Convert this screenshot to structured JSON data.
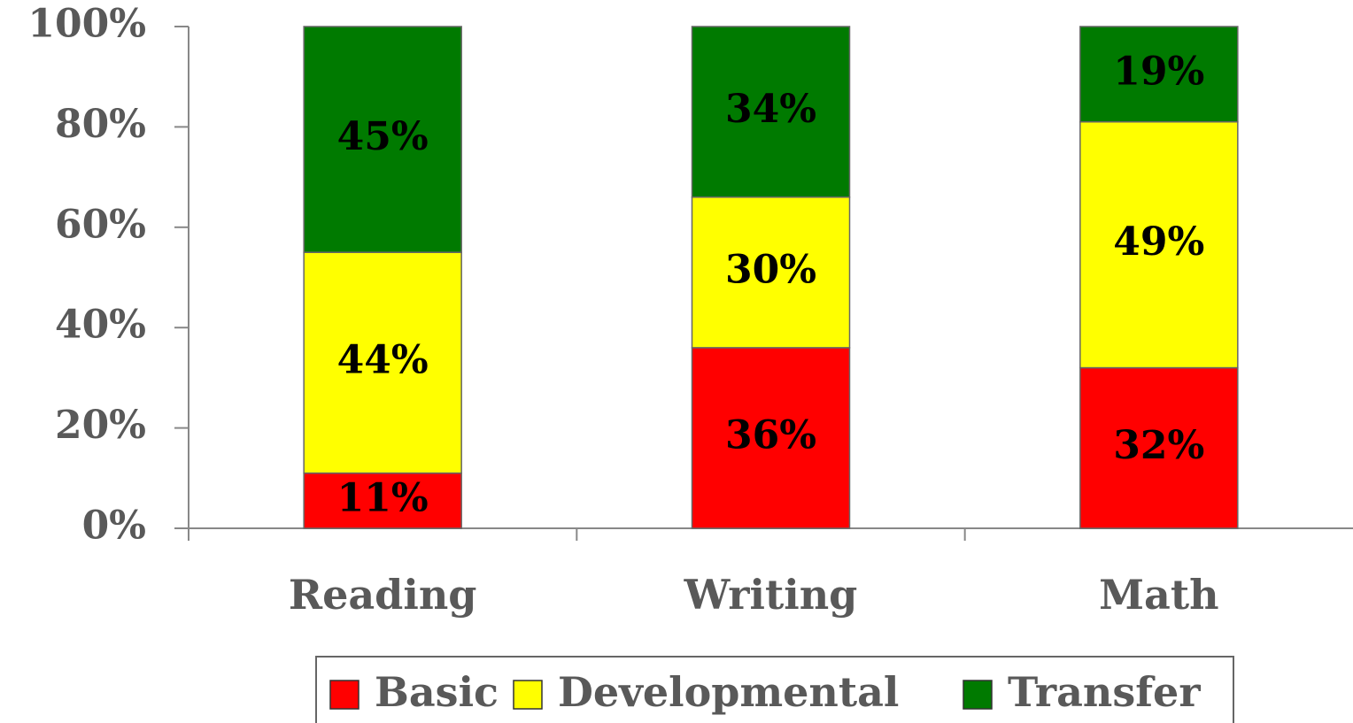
{
  "chart_data": {
    "type": "stacked_bar",
    "categories": [
      "Reading",
      "Writing",
      "Math"
    ],
    "series": [
      {
        "name": "Basic",
        "color": "#ff0000",
        "values": [
          11,
          36,
          32
        ],
        "value_labels": [
          "11%",
          "36%",
          "32%"
        ]
      },
      {
        "name": "Developmental",
        "color": "#ffff00",
        "values": [
          44,
          30,
          49
        ],
        "value_labels": [
          "44%",
          "30%",
          "49%"
        ]
      },
      {
        "name": "Transfer",
        "color": "#007a00",
        "values": [
          45,
          34,
          19
        ],
        "value_labels": [
          "45%",
          "34%",
          "19%"
        ]
      }
    ],
    "ylim": [
      0,
      100
    ],
    "yticks": [
      {
        "value": 0,
        "label": "0%"
      },
      {
        "value": 20,
        "label": "20%"
      },
      {
        "value": 40,
        "label": "40%"
      },
      {
        "value": 60,
        "label": "60%"
      },
      {
        "value": 80,
        "label": "80%"
      },
      {
        "value": 100,
        "label": "100%"
      }
    ],
    "legend": "bottom"
  }
}
